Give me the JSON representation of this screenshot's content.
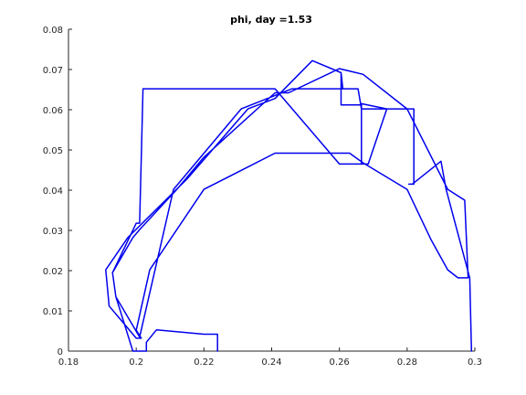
{
  "chart_data": {
    "type": "line",
    "title": "phi, day =1.53",
    "xlabel": "",
    "ylabel": "",
    "xlim": [
      0.18,
      0.3
    ],
    "ylim": [
      0,
      0.08
    ],
    "grid": false,
    "box": "left-bottom",
    "x_ticks": [
      0.18,
      0.2,
      0.22,
      0.24,
      0.26,
      0.28,
      0.3
    ],
    "x_tick_labels": [
      "0.18",
      "0.2",
      "0.22",
      "0.24",
      "0.26",
      "0.28",
      "0.3"
    ],
    "y_ticks": [
      0,
      0.01,
      0.02,
      0.03,
      0.04,
      0.05,
      0.06,
      0.07,
      0.08
    ],
    "y_tick_labels": [
      "0",
      "0.01",
      "0.02",
      "0.03",
      "0.04",
      "0.05",
      "0.06",
      "0.07",
      "0.08"
    ],
    "series": [
      {
        "name": "phi",
        "color": "#0000ee",
        "x": [
          0.224,
          0.224,
          0.22,
          0.206,
          0.203,
          0.203,
          0.199,
          0.194,
          0.193,
          0.193,
          0.199,
          0.201,
          0.212,
          0.22,
          0.241,
          0.245,
          0.26,
          0.267,
          0.28,
          0.292,
          0.297,
          0.298,
          0.295,
          0.292,
          0.287,
          0.28,
          0.267,
          0.263,
          0.241,
          0.22,
          0.204,
          0.2,
          0.2015,
          0.2,
          0.192,
          0.191,
          0.1975,
          0.215,
          0.233,
          0.241,
          0.252,
          0.2605,
          0.261,
          0.2605,
          0.2605,
          0.2665,
          0.2665,
          0.2665,
          0.274,
          0.2685,
          0.26,
          0.241,
          0.22,
          0.202,
          0.201,
          0.2,
          0.193,
          0.194,
          0.201,
          0.211,
          0.231,
          0.246,
          0.2655,
          0.2665,
          0.282,
          0.282,
          0.281,
          0.2805,
          0.2815,
          0.2815,
          0.29,
          0.2915,
          0.2985,
          0.299
        ],
        "y": [
          0,
          0.0042,
          0.0042,
          0.0053,
          0.0022,
          0,
          0,
          0.0135,
          0.0195,
          0.0195,
          0.0282,
          0.0302,
          0.0402,
          0.0482,
          0.0642,
          0.0642,
          0.0702,
          0.0688,
          0.0602,
          0.0402,
          0.0375,
          0.0182,
          0.0182,
          0.0202,
          0.0278,
          0.0402,
          0.0468,
          0.0492,
          0.0492,
          0.0402,
          0.0202,
          0.0052,
          0.0032,
          0.0032,
          0.0112,
          0.0202,
          0.0282,
          0.0428,
          0.0602,
          0.0628,
          0.0722,
          0.0692,
          0.0652,
          0.0692,
          0.0612,
          0.0612,
          0.0465,
          0.0615,
          0.0602,
          0.0465,
          0.0465,
          0.0652,
          0.0652,
          0.0652,
          0.0318,
          0.0318,
          0.0195,
          0.0135,
          0.0035,
          0.0402,
          0.0602,
          0.0652,
          0.0652,
          0.0602,
          0.0602,
          0.0415,
          0.0415,
          0.0415,
          0.0415,
          0.0415,
          0.0472,
          0.0402,
          0.0182,
          0
        ]
      }
    ]
  }
}
